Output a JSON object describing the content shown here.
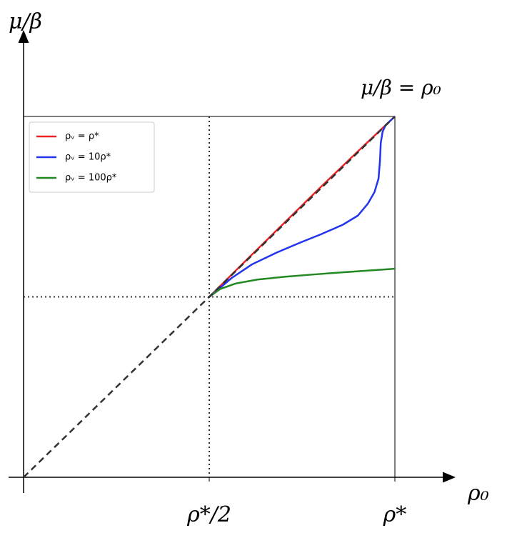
{
  "chart_data": {
    "type": "line",
    "y_label": "μ/β",
    "x_label": "ρ₀",
    "annotation": "μ/β = ρ₀",
    "xlim": [
      0,
      1
    ],
    "ylim": [
      0,
      1
    ],
    "xticks": [
      {
        "value": 0.5,
        "label": "ρ*/2"
      },
      {
        "value": 1,
        "label": "ρ*"
      }
    ],
    "vlines": [
      0.5
    ],
    "hlines": [
      0.5
    ],
    "diagonal": {
      "x": [
        0,
        1
      ],
      "values": [
        0,
        1
      ],
      "color": "#333333"
    },
    "legend": "upper left",
    "series": [
      {
        "name": "ρᵥ = ρ*",
        "color": "#ee2222",
        "x": [
          0.5,
          0.6,
          0.7,
          0.8,
          0.9,
          1
        ],
        "values": [
          0.5,
          0.602,
          0.703,
          0.804,
          0.903,
          1
        ]
      },
      {
        "name": "ρᵥ = 10ρ*",
        "color": "#2233ee",
        "x": [
          0.5,
          0.56,
          0.615,
          0.68,
          0.744,
          0.8,
          0.86,
          0.9,
          0.927,
          0.945,
          0.956,
          0.96,
          0.962,
          0.967,
          0.975,
          1
        ],
        "values": [
          0.5,
          0.552,
          0.59,
          0.622,
          0.65,
          0.673,
          0.7,
          0.725,
          0.758,
          0.79,
          0.828,
          0.88,
          0.927,
          0.958,
          0.976,
          1
        ]
      },
      {
        "name": "ρᵥ = 100ρ*",
        "color": "#228822",
        "x": [
          0.5,
          0.53,
          0.571,
          0.63,
          0.706,
          0.78,
          0.86,
          0.93,
          1
        ],
        "values": [
          0.5,
          0.522,
          0.537,
          0.548,
          0.556,
          0.562,
          0.568,
          0.573,
          0.578
        ]
      }
    ]
  }
}
